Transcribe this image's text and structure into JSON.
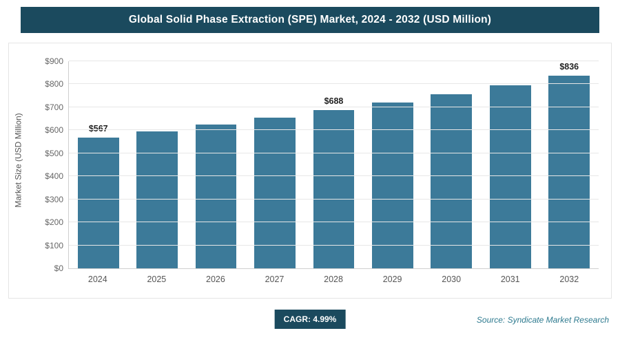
{
  "header": {
    "title": "Global Solid Phase Extraction (SPE) Market, 2024 - 2032 (USD Million)"
  },
  "chart_data": {
    "type": "bar",
    "title": "Global Solid Phase Extraction (SPE) Market, 2024 - 2032 (USD Million)",
    "categories": [
      "2024",
      "2025",
      "2026",
      "2027",
      "2028",
      "2029",
      "2030",
      "2031",
      "2032"
    ],
    "values": [
      567,
      595,
      625,
      656,
      688,
      722,
      758,
      796,
      836
    ],
    "data_labels": [
      {
        "index": 0,
        "text": "$567"
      },
      {
        "index": 4,
        "text": "$688"
      },
      {
        "index": 8,
        "text": "$836"
      }
    ],
    "xlabel": "",
    "ylabel": "Market Size (USD Million)",
    "ylim": [
      0,
      900
    ],
    "ytick_labels": [
      "$0",
      "$100",
      "$200",
      "$300",
      "$400",
      "$500",
      "$600",
      "$700",
      "$800",
      "$900"
    ],
    "grid": true,
    "legend": "none",
    "bar_color": "#3c7a99"
  },
  "footer": {
    "cagr_label": "CAGR: 4.99%",
    "source": "Source: Syndicate Market Research"
  },
  "colors": {
    "accent": "#1b4a5e",
    "bar": "#3c7a99",
    "gridline": "#e7e7e7"
  }
}
